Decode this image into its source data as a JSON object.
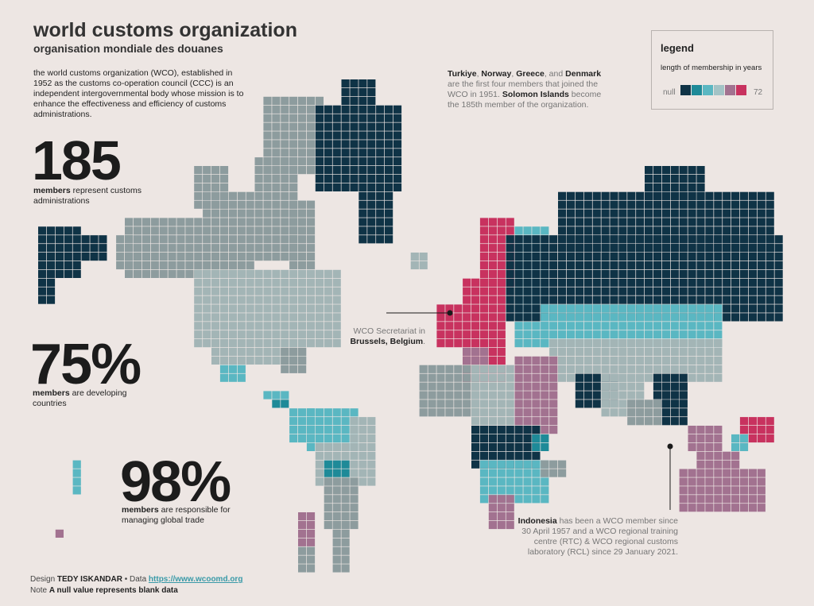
{
  "header": {
    "title": "world customs organization",
    "subtitle": "organisation mondiale des douanes",
    "intro": "the world customs organization (WCO), established in 1952 as the customs co-operation council (CCC) is an independent intergovernmental body whose mission is to enhance the effectiveness and efficiency of customs administrations."
  },
  "stats": [
    {
      "value": "185",
      "bold": "members",
      "rest": " represent customs administrations"
    },
    {
      "value": "75%",
      "bold": "members",
      "rest": " are developing countries"
    },
    {
      "value": "98%",
      "bold": "members",
      "rest": " are responsible for managing global trade"
    }
  ],
  "annotations": {
    "first_members": {
      "c1": "Turkiye",
      "s1": ", ",
      "c2": "Norway",
      "s2": ", ",
      "c3": "Greece",
      "s3": ", and ",
      "c4": "Denmark",
      "mid": " are the first four members that joined the WCO in 1951. ",
      "c5": "Solomon Islands",
      "end": " become the 185th member of the organization."
    },
    "secretariat": {
      "text": "WCO Secretariat in ",
      "bold": "Brussels, Belgium",
      "end": "."
    },
    "indonesia": {
      "bold": "Indonesia",
      "text": " has been a WCO member since 30 April 1957 and a WCO regional training centre (RTC) & WCO regional customs laboratory (RCL) since 29 January 2021."
    }
  },
  "legend": {
    "title": "legend",
    "subtitle": "length of membership in years",
    "min_label": "null",
    "max_label": "72",
    "colors": [
      "#0f3346",
      "#1e8a98",
      "#5ab7c2",
      "#a3c3c6",
      "#a27290",
      "#c8325f"
    ]
  },
  "footer": {
    "design_label": "Design ",
    "designer": "TEDY ISKANDAR",
    "sep": " • Data ",
    "url": "https://www.wcoomd.org",
    "note_label": "Note ",
    "note": "A null value represents blank data"
  },
  "map_colors": {
    "null": "#0f3346",
    "grey": "#8d9c9e",
    "lightgrey": "#a3b5b6",
    "teal": "#1e8a98",
    "lightteal": "#5ab7c2",
    "mauve": "#a27290",
    "crimson": "#c8325f"
  }
}
